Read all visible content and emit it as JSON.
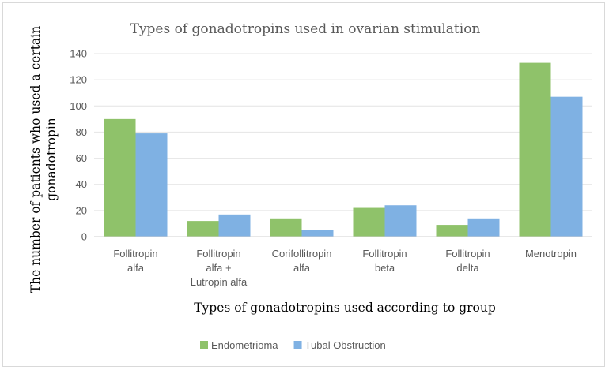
{
  "chart_data": {
    "type": "bar",
    "title": "Types of gonadotropins used in ovarian stimulation",
    "xlabel": "Types of gonadotropins used according to group",
    "ylabel_lines": [
      "The number of patients who used a certain",
      "gonadotropin"
    ],
    "ylim": [
      0,
      140
    ],
    "yticks": [
      "0",
      "20",
      "40",
      "60",
      "80",
      "100",
      "120",
      "140"
    ],
    "grid": true,
    "legend_position": "bottom",
    "categories": [
      [
        "Follitropin",
        "alfa"
      ],
      [
        "Follitropin",
        "alfa +",
        "Lutropin  alfa"
      ],
      [
        "Corifollitropin",
        "alfa"
      ],
      [
        "Follitropin",
        "beta"
      ],
      [
        "Follitropin",
        "delta"
      ],
      [
        "Menotropin"
      ]
    ],
    "series": [
      {
        "name": "Endometrioma",
        "color": "#8fc26a",
        "values": [
          90,
          12,
          14,
          22,
          9,
          133
        ]
      },
      {
        "name": "Tubal Obstruction",
        "color": "#7fb1e3",
        "values": [
          79,
          17,
          5,
          24,
          14,
          107
        ]
      }
    ]
  }
}
